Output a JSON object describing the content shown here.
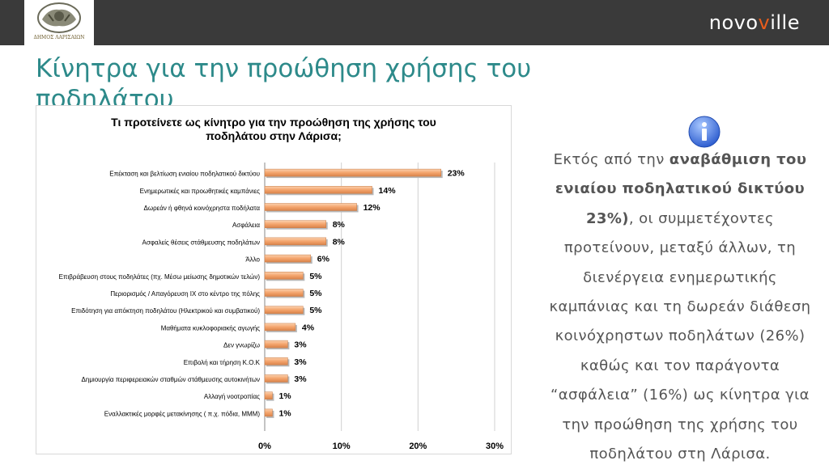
{
  "header": {
    "logo_text": "ΔΗΜΟΣ ΛΑΡΙΣΑΙΩΝ",
    "brand_before": "novo",
    "brand_accent": "v",
    "brand_after": "ille",
    "brand_accent_color": "#e85d1c"
  },
  "page": {
    "title": "Κίνητρα για την προώθηση χρήσης του ποδηλάτου"
  },
  "chart_data": {
    "type": "bar",
    "orientation": "horizontal",
    "title_line1": "Τι προτείνετε ως κίνητρο για την προώθηση της χρήσης του",
    "title_line2": "ποδηλάτου στην Λάρισα;",
    "categories": [
      "Επέκταση και βελτίωση ενιαίου ποδηλατικού δικτύου",
      "Ενημερωτικές και προωθητικές καμπάνιες",
      "Δωρεάν ή φθηνά κοινόχρηστα ποδήλατα",
      "Ασφάλεια",
      "Ασφαλείς θέσεις στάθμευσης ποδηλάτων",
      "Άλλο",
      "Επιβράβευση στους ποδηλάτες (πχ. Μέσω μείωσης δημοτικών τελών)",
      "Περιορισμός / Απαγόρευση ΙΧ στο κέντρο της πόλης",
      "Επιδότηση για απόκτηση ποδηλάτου (Ηλεκτρικού και συμβατικού)",
      "Μαθήματα κυκλοφοριακής αγωγής",
      "Δεν γνωρίζω",
      "Επιβολή και τήρηση Κ.Ο.Κ",
      "Δημιουργία περιφερειακών σταθμών στάθμευσης αυτοκινήτων",
      "Αλλαγή νοοτροπίας",
      "Εναλλακτικές μορφές μετακίνησης ( π.χ. πόδια, ΜΜΜ)"
    ],
    "values": [
      23,
      14,
      12,
      8,
      8,
      6,
      5,
      5,
      5,
      4,
      3,
      3,
      3,
      1,
      1
    ],
    "value_labels": [
      "23%",
      "14%",
      "12%",
      "8%",
      "8%",
      "6%",
      "5%",
      "5%",
      "5%",
      "4%",
      "3%",
      "3%",
      "3%",
      "1%",
      "1%"
    ],
    "xlim": [
      0,
      30
    ],
    "xticks": [
      "0%",
      "10%",
      "20%",
      "30%"
    ],
    "grid": "vertical",
    "bar_color": "#f4a46c"
  },
  "info": {
    "icon": "info-icon",
    "line1_pre": "Εκτός από την ",
    "line1_bold": "αναβάθμιση του",
    "line2_bold": "ενιαίου ποδηλατικού δικτύου",
    "line3_bold": "23%)",
    "line3_post": ", οι συμμετέχοντες",
    "line4": "προτείνουν, μεταξύ άλλων, τη",
    "line5": "διενέργεια ενημερωτικής",
    "line6": "καμπάνιας και τη δωρεάν διάθεση",
    "line7": "κοινόχρηστων ποδηλάτων (26%)",
    "line8": "καθώς και τον παράγοντα",
    "line9": "“ασφάλεια” (16%) ως κίνητρα για",
    "line10": "την προώθηση της χρήσης του",
    "line11": "ποδηλάτου στη Λάρισα."
  }
}
